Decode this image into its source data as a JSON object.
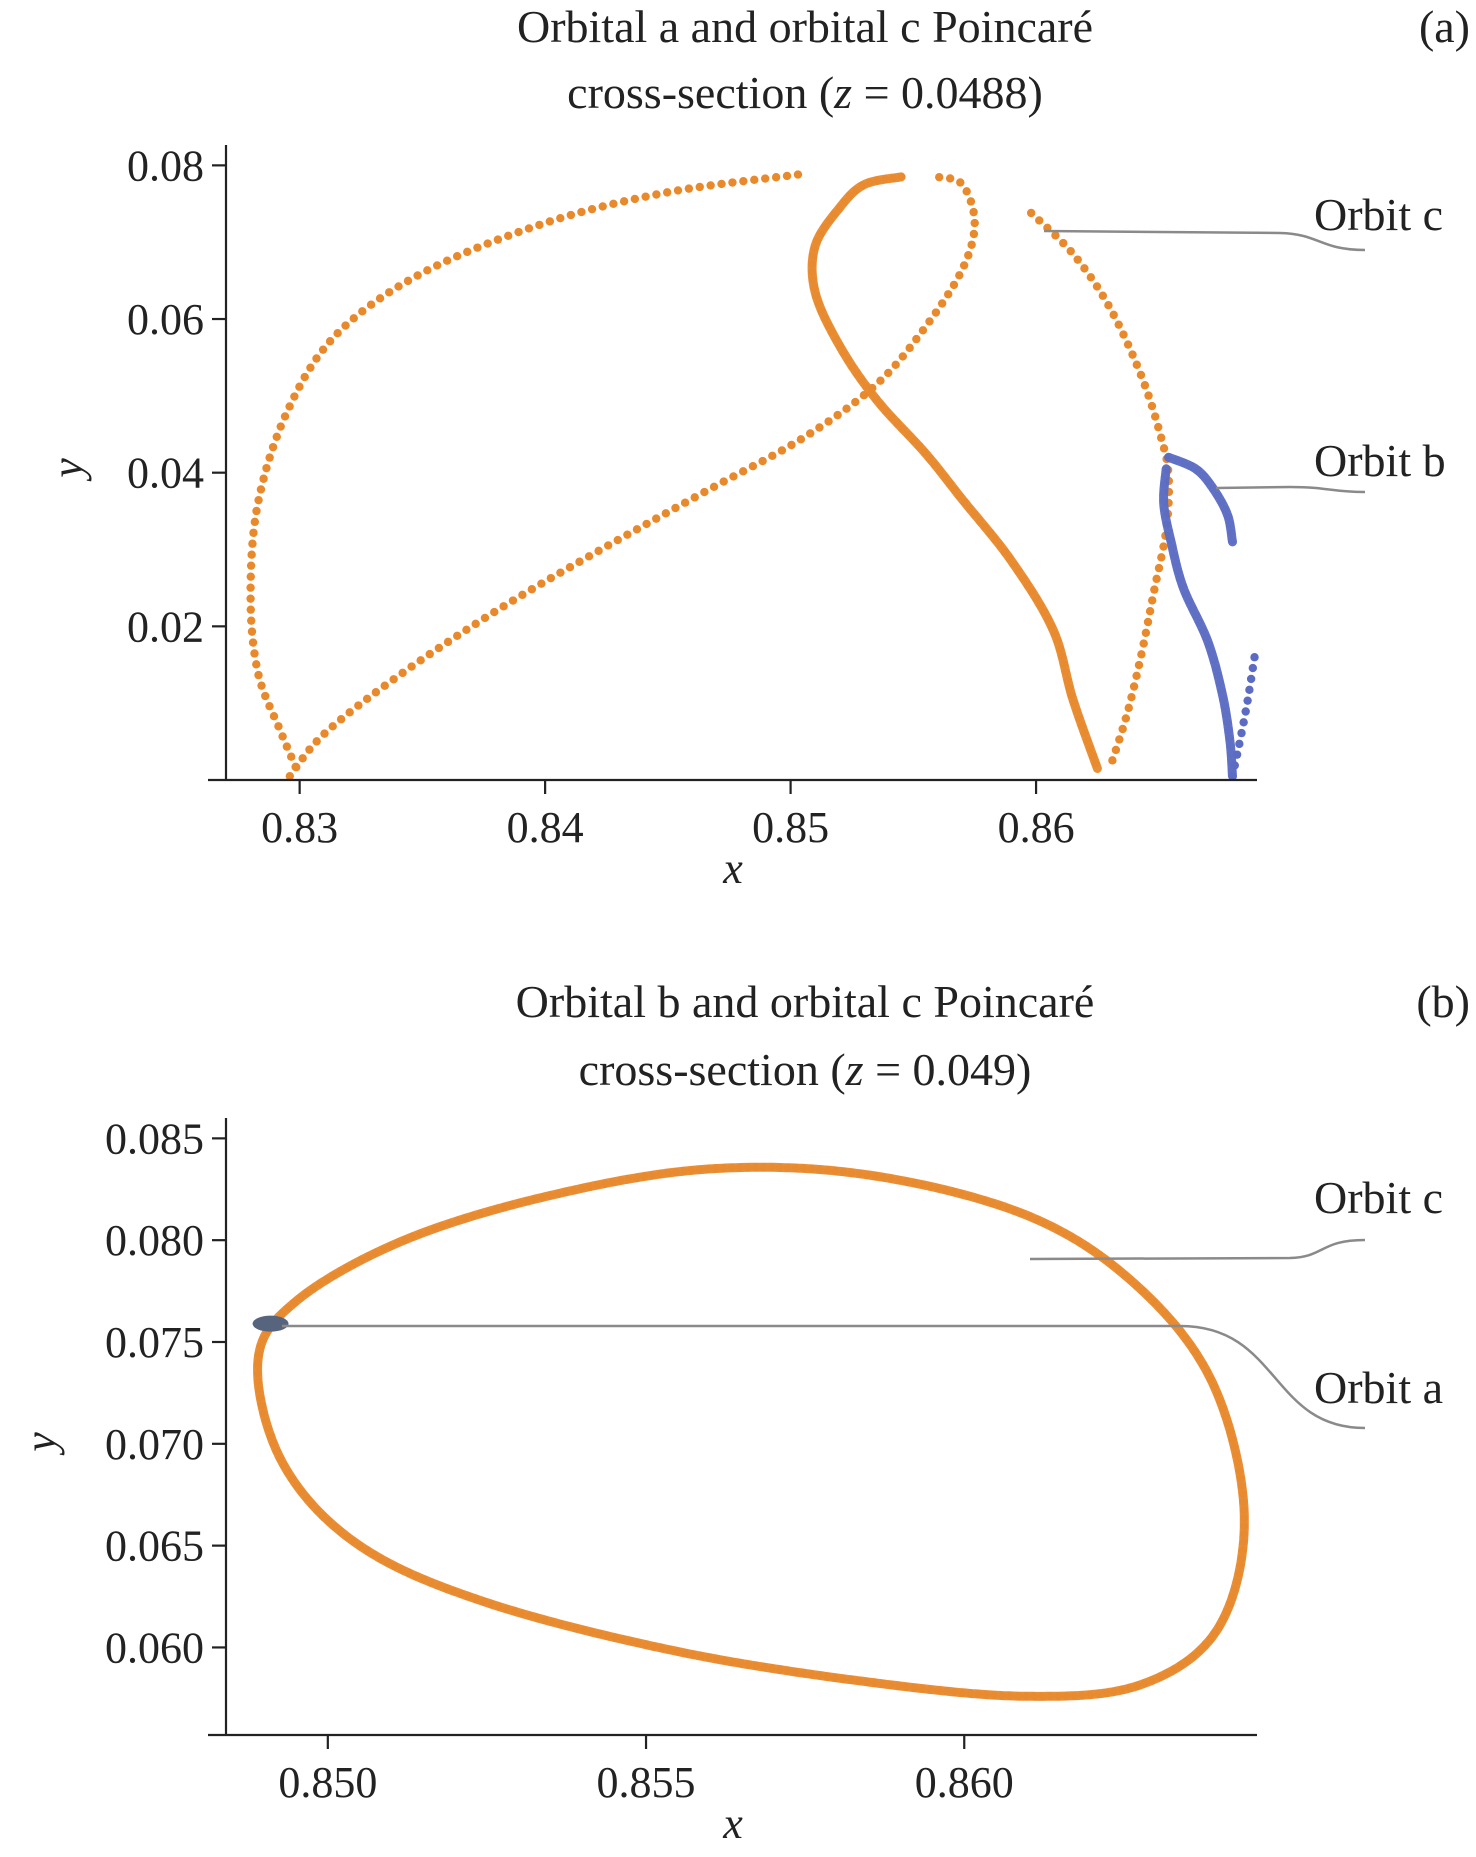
{
  "chart_data": [
    {
      "type": "scatter",
      "panel_label": "(a)",
      "title_line1": "Orbital a and orbital c Poincaré",
      "title_line2": "cross-section (z = 0.0488)",
      "xlabel": "x",
      "ylabel": "y",
      "xlim": [
        0.827,
        0.869
      ],
      "ylim": [
        0.0,
        0.082
      ],
      "xticks": [
        0.83,
        0.84,
        0.85,
        0.86
      ],
      "xtick_labels": [
        "0.83",
        "0.84",
        "0.85",
        "0.86"
      ],
      "yticks": [
        0.02,
        0.04,
        0.06,
        0.08
      ],
      "ytick_labels": [
        "0.02",
        "0.04",
        "0.06",
        "0.08"
      ],
      "series": [
        {
          "name": "Orbit c",
          "color": "#e8892c",
          "segments": [
            {
              "style": "dotted",
              "points": [
                [
                  0.8503,
                  0.0788
                ],
                [
                  0.845,
                  0.0765
                ],
                [
                  0.84,
                  0.0725
                ],
                [
                  0.835,
                  0.066
                ],
                [
                  0.8315,
                  0.058
                ],
                [
                  0.8295,
                  0.048
                ],
                [
                  0.8283,
                  0.036
                ],
                [
                  0.828,
                  0.024
                ],
                [
                  0.8283,
                  0.014
                ],
                [
                  0.8292,
                  0.0065
                ],
                [
                  0.83,
                  0.0005
                ]
              ]
            },
            {
              "style": "dotted",
              "points": [
                [
                  0.8296,
                  0.0005
                ],
                [
                  0.831,
                  0.006
                ],
                [
                  0.834,
                  0.0135
                ],
                [
                  0.838,
                  0.022
                ],
                [
                  0.842,
                  0.0295
                ],
                [
                  0.8465,
                  0.0375
                ],
                [
                  0.8505,
                  0.0445
                ],
                [
                  0.8535,
                  0.0515
                ],
                [
                  0.8555,
                  0.059
                ],
                [
                  0.857,
                  0.0665
                ],
                [
                  0.8575,
                  0.0725
                ],
                [
                  0.857,
                  0.0775
                ],
                [
                  0.856,
                  0.0785
                ]
              ]
            },
            {
              "style": "solid",
              "points": [
                [
                  0.8545,
                  0.0785
                ],
                [
                  0.853,
                  0.0775
                ],
                [
                  0.852,
                  0.0745
                ],
                [
                  0.851,
                  0.0695
                ],
                [
                  0.851,
                  0.0635
                ],
                [
                  0.852,
                  0.0565
                ],
                [
                  0.8535,
                  0.0495
                ],
                [
                  0.8555,
                  0.0425
                ],
                [
                  0.857,
                  0.0365
                ],
                [
                  0.859,
                  0.0285
                ],
                [
                  0.8607,
                  0.0195
                ],
                [
                  0.8615,
                  0.0105
                ],
                [
                  0.8625,
                  0.0015
                ]
              ]
            },
            {
              "style": "dotted",
              "points": [
                [
                  0.8598,
                  0.0738
                ],
                [
                  0.8615,
                  0.0685
                ],
                [
                  0.863,
                  0.0615
                ],
                [
                  0.8643,
                  0.0525
                ],
                [
                  0.8651,
                  0.0445
                ],
                [
                  0.8654,
                  0.0395
                ],
                [
                  0.8653,
                  0.0325
                ],
                [
                  0.8648,
                  0.0245
                ],
                [
                  0.8643,
                  0.0165
                ],
                [
                  0.8637,
                  0.0085
                ],
                [
                  0.863,
                  0.0015
                ]
              ]
            }
          ]
        },
        {
          "name": "Orbit b",
          "color": "#5b6cc2",
          "segments": [
            {
              "style": "solid",
              "points": [
                [
                  0.8654,
                  0.042
                ],
                [
                  0.8665,
                  0.0405
                ],
                [
                  0.8672,
                  0.038
                ],
                [
                  0.8678,
                  0.0345
                ],
                [
                  0.868,
                  0.031
                ]
              ]
            },
            {
              "style": "solid",
              "points": [
                [
                  0.8653,
                  0.0405
                ],
                [
                  0.8652,
                  0.036
                ],
                [
                  0.8655,
                  0.031
                ],
                [
                  0.866,
                  0.025
                ],
                [
                  0.867,
                  0.018
                ],
                [
                  0.8676,
                  0.011
                ],
                [
                  0.8679,
                  0.005
                ],
                [
                  0.868,
                  0.0005
                ]
              ]
            },
            {
              "style": "dotted",
              "points": [
                [
                  0.868,
                  0.0005
                ],
                [
                  0.8683,
                  0.005
                ],
                [
                  0.8686,
                  0.01
                ],
                [
                  0.8689,
                  0.016
                ]
              ]
            }
          ]
        }
      ],
      "annotations": [
        {
          "text": "Orbit c",
          "target": [
            0.8598,
            0.074
          ]
        },
        {
          "text": "Orbit b",
          "target": [
            0.867,
            0.0395
          ]
        }
      ]
    },
    {
      "type": "scatter",
      "panel_label": "(b)",
      "title_line1": "Orbital b and orbital c Poincaré",
      "title_line2": "cross-section (z = 0.049)",
      "xlabel": "x",
      "ylabel": "y",
      "xlim": [
        0.8484,
        0.8646
      ],
      "ylim": [
        0.0557,
        0.086
      ],
      "xticks": [
        0.85,
        0.855,
        0.86
      ],
      "xtick_labels": [
        "0.850",
        "0.855",
        "0.860"
      ],
      "yticks": [
        0.06,
        0.065,
        0.07,
        0.075,
        0.08,
        0.085
      ],
      "ytick_labels": [
        "0.060",
        "0.065",
        "0.070",
        "0.075",
        "0.080",
        "0.085"
      ],
      "series": [
        {
          "name": "Orbit c",
          "color": "#e8892c",
          "segments": [
            {
              "style": "closed",
              "points": [
                [
                  0.8489,
                  0.074
                ],
                [
                  0.8495,
                  0.077
                ],
                [
                  0.8512,
                  0.08
                ],
                [
                  0.8535,
                  0.0822
                ],
                [
                  0.856,
                  0.0835
                ],
                [
                  0.8585,
                  0.0832
                ],
                [
                  0.861,
                  0.0812
                ],
                [
                  0.8627,
                  0.0778
                ],
                [
                  0.8639,
                  0.073
                ],
                [
                  0.8644,
                  0.0665
                ],
                [
                  0.864,
                  0.061
                ],
                [
                  0.8628,
                  0.0582
                ],
                [
                  0.861,
                  0.0576
                ],
                [
                  0.8585,
                  0.0583
                ],
                [
                  0.8555,
                  0.0598
                ],
                [
                  0.8525,
                  0.0622
                ],
                [
                  0.8505,
                  0.065
                ],
                [
                  0.8493,
                  0.069
                ]
              ]
            }
          ]
        },
        {
          "name": "Orbit a",
          "color": "#56647e",
          "segments": [
            {
              "style": "blob",
              "points": [
                [
                  0.8491,
                  0.0759
                ]
              ]
            }
          ]
        }
      ],
      "annotations": [
        {
          "text": "Orbit c",
          "target": [
            0.861,
            0.0809
          ]
        },
        {
          "text": "Orbit a",
          "target": [
            0.8494,
            0.0759
          ]
        }
      ]
    }
  ]
}
